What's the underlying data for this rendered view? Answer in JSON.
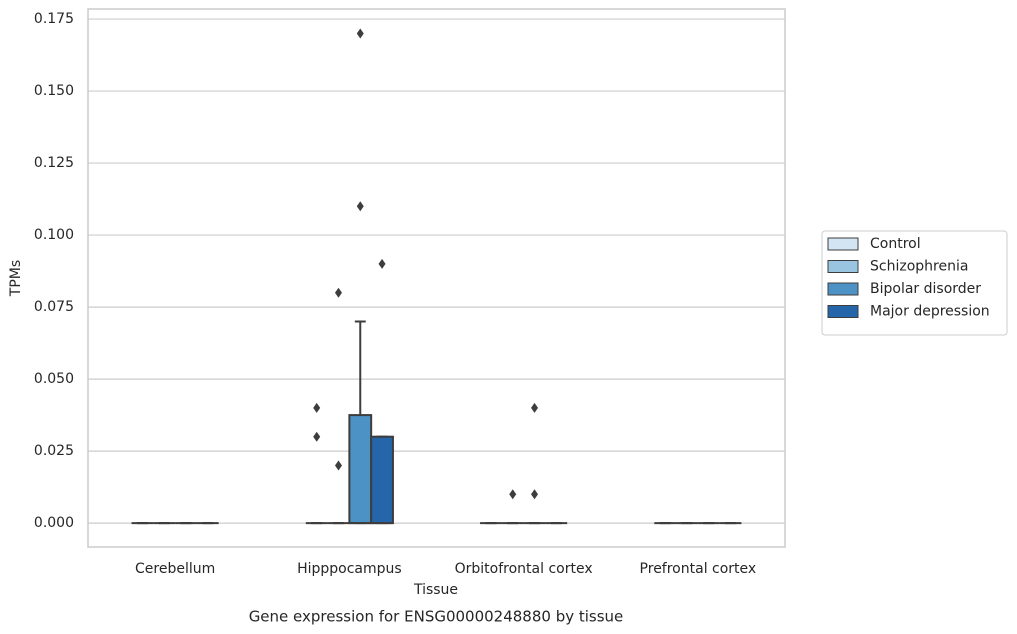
{
  "chart_data": {
    "type": "box",
    "title": "Gene expression for ENSG00000248880 by tissue",
    "xlabel": "Tissue",
    "ylabel": "TPMs",
    "categories": [
      "Cerebellum",
      "Hipppocampus",
      "Orbitofrontal cortex",
      "Prefrontal cortex"
    ],
    "series": [
      {
        "name": "Control",
        "color": "#d3e4f3",
        "boxes": [
          {
            "min": 0,
            "q1": 0,
            "median": 0,
            "q3": 0,
            "max": 0,
            "outliers": []
          },
          {
            "min": 0,
            "q1": 0,
            "median": 0,
            "q3": 0,
            "max": 0,
            "outliers": [
              0.04,
              0.03
            ]
          },
          {
            "min": 0,
            "q1": 0,
            "median": 0,
            "q3": 0,
            "max": 0,
            "outliers": []
          },
          {
            "min": 0,
            "q1": 0,
            "median": 0,
            "q3": 0,
            "max": 0,
            "outliers": []
          }
        ]
      },
      {
        "name": "Schizophrenia",
        "color": "#9ac5e0",
        "boxes": [
          {
            "min": 0,
            "q1": 0,
            "median": 0,
            "q3": 0,
            "max": 0,
            "outliers": []
          },
          {
            "min": 0,
            "q1": 0,
            "median": 0,
            "q3": 0,
            "max": 0,
            "outliers": [
              0.08,
              0.02
            ]
          },
          {
            "min": 0,
            "q1": 0,
            "median": 0,
            "q3": 0,
            "max": 0,
            "outliers": [
              0.01
            ]
          },
          {
            "min": 0,
            "q1": 0,
            "median": 0,
            "q3": 0,
            "max": 0,
            "outliers": []
          }
        ]
      },
      {
        "name": "Bipolar disorder",
        "color": "#4d92c4",
        "boxes": [
          {
            "min": 0,
            "q1": 0,
            "median": 0,
            "q3": 0,
            "max": 0,
            "outliers": []
          },
          {
            "min": 0,
            "q1": 0,
            "median": 0,
            "q3": 0.0375,
            "max": 0.07,
            "outliers": [
              0.17,
              0.11
            ]
          },
          {
            "min": 0,
            "q1": 0,
            "median": 0,
            "q3": 0,
            "max": 0,
            "outliers": [
              0.04,
              0.01
            ]
          },
          {
            "min": 0,
            "q1": 0,
            "median": 0,
            "q3": 0,
            "max": 0,
            "outliers": []
          }
        ]
      },
      {
        "name": "Major depression",
        "color": "#2566aa",
        "boxes": [
          {
            "min": 0,
            "q1": 0,
            "median": 0,
            "q3": 0,
            "max": 0,
            "outliers": []
          },
          {
            "min": 0,
            "q1": 0,
            "median": 0,
            "q3": 0.03,
            "max": 0.03,
            "outliers": [
              0.09
            ]
          },
          {
            "min": 0,
            "q1": 0,
            "median": 0,
            "q3": 0,
            "max": 0,
            "outliers": []
          },
          {
            "min": 0,
            "q1": 0,
            "median": 0,
            "q3": 0,
            "max": 0,
            "outliers": []
          }
        ]
      }
    ],
    "ylim": [
      -0.0083,
      0.1785
    ],
    "yticks": [
      {
        "value": 0,
        "label": "0.000"
      },
      {
        "value": 0.025,
        "label": "0.025"
      },
      {
        "value": 0.05,
        "label": "0.050"
      },
      {
        "value": 0.075,
        "label": "0.075"
      },
      {
        "value": 0.1,
        "label": "0.100"
      },
      {
        "value": 0.125,
        "label": "0.125"
      },
      {
        "value": 0.15,
        "label": "0.150"
      },
      {
        "value": 0.175,
        "label": "0.175"
      }
    ],
    "grid": true,
    "legend": "right"
  }
}
